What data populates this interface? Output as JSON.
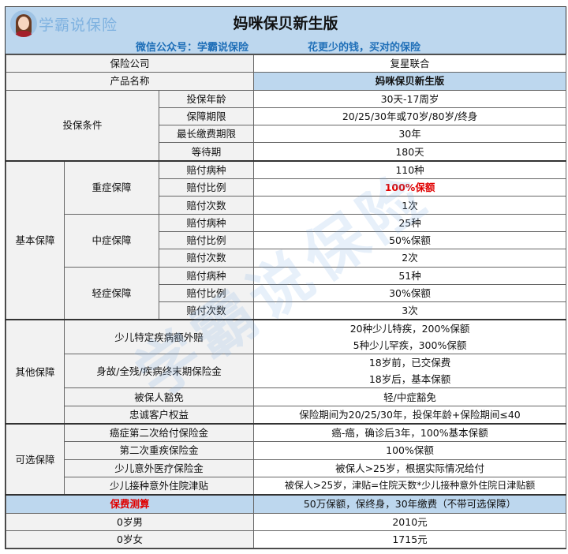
{
  "header": {
    "logo_text": "学霸说保险",
    "title": "妈咪保贝新生版",
    "wechat": "微信公众号：学霸说保险",
    "slogan": "花更少的钱，买对的保险",
    "watermark": "学霸说保险"
  },
  "colors": {
    "header_bg": "#bdd7ee",
    "highlight": "#e00000",
    "label_bg": "#f2f2f2"
  },
  "rows": {
    "company": {
      "label": "保险公司",
      "value": "复星联合"
    },
    "product": {
      "label": "产品名称",
      "value": "妈咪保贝新生版"
    },
    "conditions": {
      "group": "投保条件",
      "items": [
        {
          "label": "投保年龄",
          "value": "30天-17周岁"
        },
        {
          "label": "保障期限",
          "value": "20/25/30年或70岁/80岁/终身"
        },
        {
          "label": "最长缴费期限",
          "value": "30年"
        },
        {
          "label": "等待期",
          "value": "180天"
        }
      ]
    },
    "basic": {
      "group": "基本保障",
      "subgroups": [
        {
          "name": "重症保障",
          "items": [
            {
              "label": "赔付病种",
              "value": "110种"
            },
            {
              "label": "赔付比例",
              "value": "100%保额"
            },
            {
              "label": "赔付次数",
              "value": "1次"
            }
          ]
        },
        {
          "name": "中症保障",
          "items": [
            {
              "label": "赔付病种",
              "value": "25种"
            },
            {
              "label": "赔付比例",
              "value": "50%保额"
            },
            {
              "label": "赔付次数",
              "value": "2次"
            }
          ]
        },
        {
          "name": "轻症保障",
          "items": [
            {
              "label": "赔付病种",
              "value": "51种"
            },
            {
              "label": "赔付比例",
              "value": "30%保额"
            },
            {
              "label": "赔付次数",
              "value": "3次"
            }
          ]
        }
      ]
    },
    "other": {
      "group": "其他保障",
      "items": [
        {
          "label": "少儿特定疾病额外赔",
          "value1": "20种少儿特疾，200%保额",
          "value2": "5种少儿罕疾，300%保额"
        },
        {
          "label": "身故/全残/疾病终末期保险金",
          "value1": "18岁前，已交保费",
          "value2": "18岁后，基本保额"
        },
        {
          "label": "被保人豁免",
          "value1": "轻/中症豁免"
        },
        {
          "label": "忠诚客户权益",
          "value1": "保险期间为20/25/30年，投保年龄+保险期间≤40"
        }
      ]
    },
    "optional": {
      "group": "可选保障",
      "items": [
        {
          "label": "癌症第二次给付保险金",
          "value": "癌-癌，确诊后3年，100%基本保额"
        },
        {
          "label": "第二次重疾保险金",
          "value": "100%保额"
        },
        {
          "label": "少儿意外医疗保险金",
          "value": "被保人>25岁，根据实际情况给付"
        },
        {
          "label": "少儿接种意外住院津贴",
          "value": "被保人>25岁，津贴=住院天数*少儿接种意外住院日津贴额"
        }
      ]
    },
    "premium": {
      "label": "保费测算",
      "value": "50万保额，保终身，30年缴费（不带可选保障）"
    },
    "prices": [
      {
        "label": "0岁男",
        "value": "2010元"
      },
      {
        "label": "0岁女",
        "value": "1715元"
      }
    ]
  }
}
